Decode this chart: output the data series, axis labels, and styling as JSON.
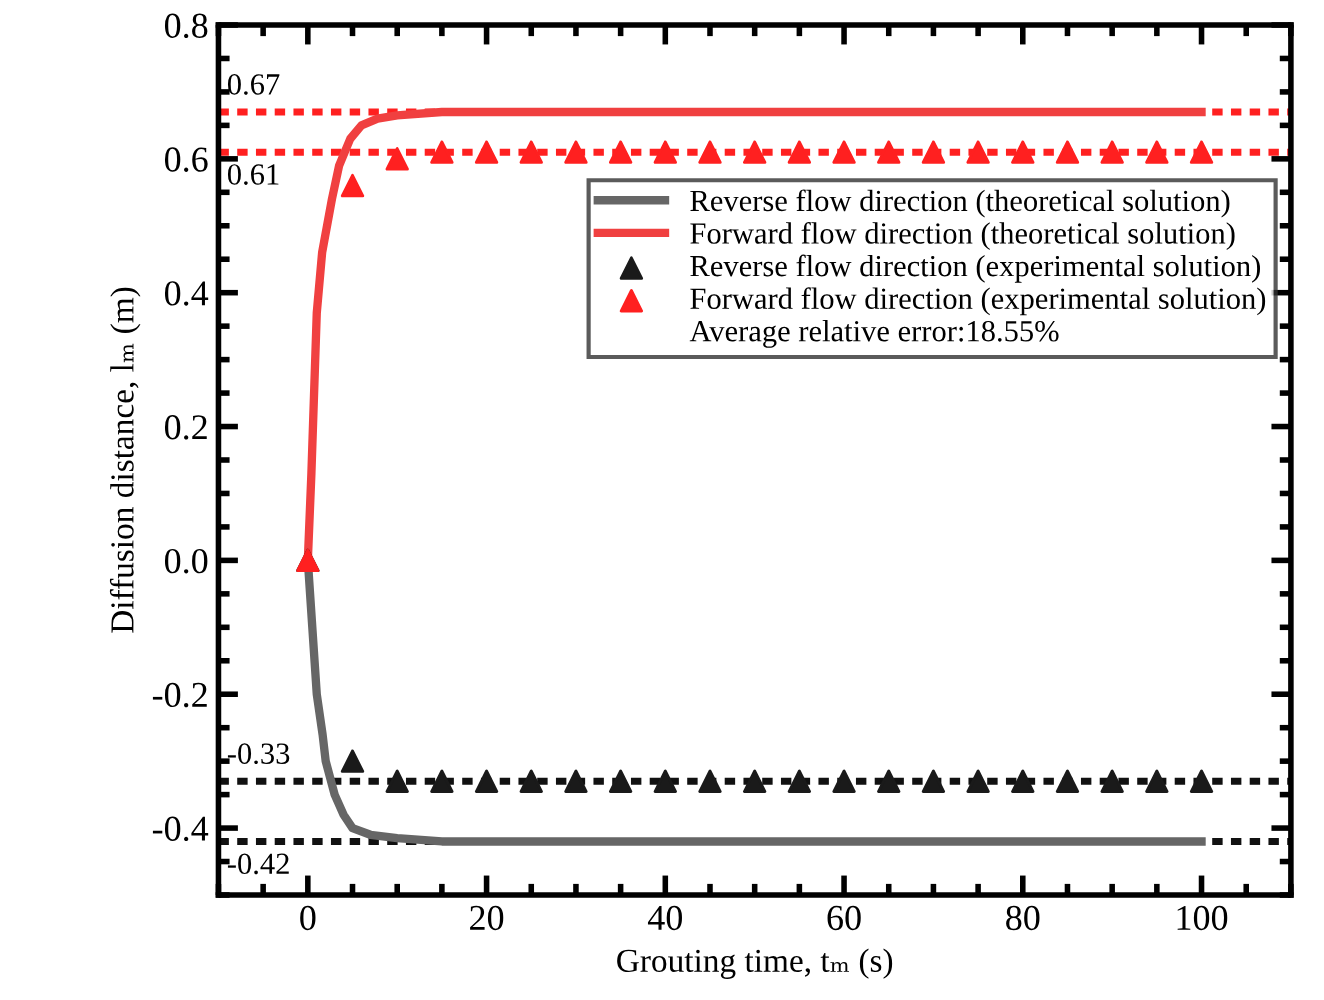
{
  "chart_data": {
    "type": "line",
    "xlabel": "Grouting time, tₘ (s)",
    "ylabel": "Diffusion distance, lₘ (m)",
    "xlim": [
      -10,
      110
    ],
    "xticks": [
      0,
      20,
      40,
      60,
      80,
      100
    ],
    "ylim": [
      -0.5,
      0.8
    ],
    "yticks": [
      -0.4,
      -0.2,
      {
        "value": 0,
        "label": "0.0"
      },
      0.2,
      0.4,
      0.6,
      0.8
    ],
    "grid": false,
    "legend": "right",
    "line_style": "solid",
    "marker": "none",
    "series": [
      {
        "name": "Reverse flow direction (theoretical solution)",
        "color": "#666666",
        "x": [
          0,
          0.5,
          1,
          1.65,
          2,
          3,
          4,
          5,
          7,
          10,
          15,
          20,
          40,
          60,
          80,
          100
        ],
        "values": [
          0,
          -0.1,
          -0.2,
          -0.26,
          -0.3,
          -0.35,
          -0.38,
          -0.4,
          -0.41,
          -0.415,
          -0.42,
          -0.42,
          -0.42,
          -0.42,
          -0.42,
          -0.42
        ]
      },
      {
        "name": "Forward flow direction (theoretical solution)",
        "color": "#f04040",
        "x": [
          0,
          0.4,
          1,
          1.6,
          2.7,
          3.5,
          4.75,
          6,
          7.8,
          10,
          15,
          20,
          40,
          60,
          80,
          100
        ],
        "values": [
          0,
          0.13,
          0.37,
          0.46,
          0.54,
          0.59,
          0.63,
          0.65,
          0.66,
          0.665,
          0.67,
          0.67,
          0.67,
          0.67,
          0.67,
          0.67
        ]
      },
      {
        "name": "Reverse flow direction (experimental solution)",
        "type": "scatter",
        "marker": "triangle",
        "color": "#1a1a1a",
        "x": [
          0,
          5,
          10,
          15,
          20,
          25,
          30,
          35,
          40,
          45,
          50,
          55,
          60,
          65,
          70,
          75,
          80,
          85,
          90,
          95,
          100
        ],
        "values": [
          0,
          -0.3,
          -0.33,
          -0.33,
          -0.33,
          -0.33,
          -0.33,
          -0.33,
          -0.33,
          -0.33,
          -0.33,
          -0.33,
          -0.33,
          -0.33,
          -0.33,
          -0.33,
          -0.33,
          -0.33,
          -0.33,
          -0.33,
          -0.33
        ]
      },
      {
        "name": "Forward flow direction (experimental solution)",
        "type": "scatter",
        "marker": "triangle",
        "color": "#ff2020",
        "x": [
          0,
          5,
          10,
          15,
          20,
          25,
          30,
          35,
          40,
          45,
          50,
          55,
          60,
          65,
          70,
          75,
          80,
          85,
          90,
          95,
          100
        ],
        "values": [
          0,
          0.56,
          0.6,
          0.61,
          0.61,
          0.61,
          0.61,
          0.61,
          0.61,
          0.61,
          0.61,
          0.61,
          0.61,
          0.61,
          0.61,
          0.61,
          0.61,
          0.61,
          0.61,
          0.61,
          0.61
        ]
      }
    ],
    "ref_lines": [
      {
        "axis": "y",
        "value": 0.67,
        "label": "0.67",
        "color": "#ff2020",
        "line_style": "dotted"
      },
      {
        "axis": "y",
        "value": 0.61,
        "label": "0.61",
        "color": "#ff2020",
        "line_style": "dotted"
      },
      {
        "axis": "y",
        "value": -0.33,
        "label": "-0.33",
        "color": "#111111",
        "line_style": "dotted"
      },
      {
        "axis": "y",
        "value": -0.42,
        "label": "-0.42",
        "color": "#111111",
        "line_style": "dotted"
      }
    ],
    "annotations": [
      "Average relative error:18.55%"
    ]
  }
}
